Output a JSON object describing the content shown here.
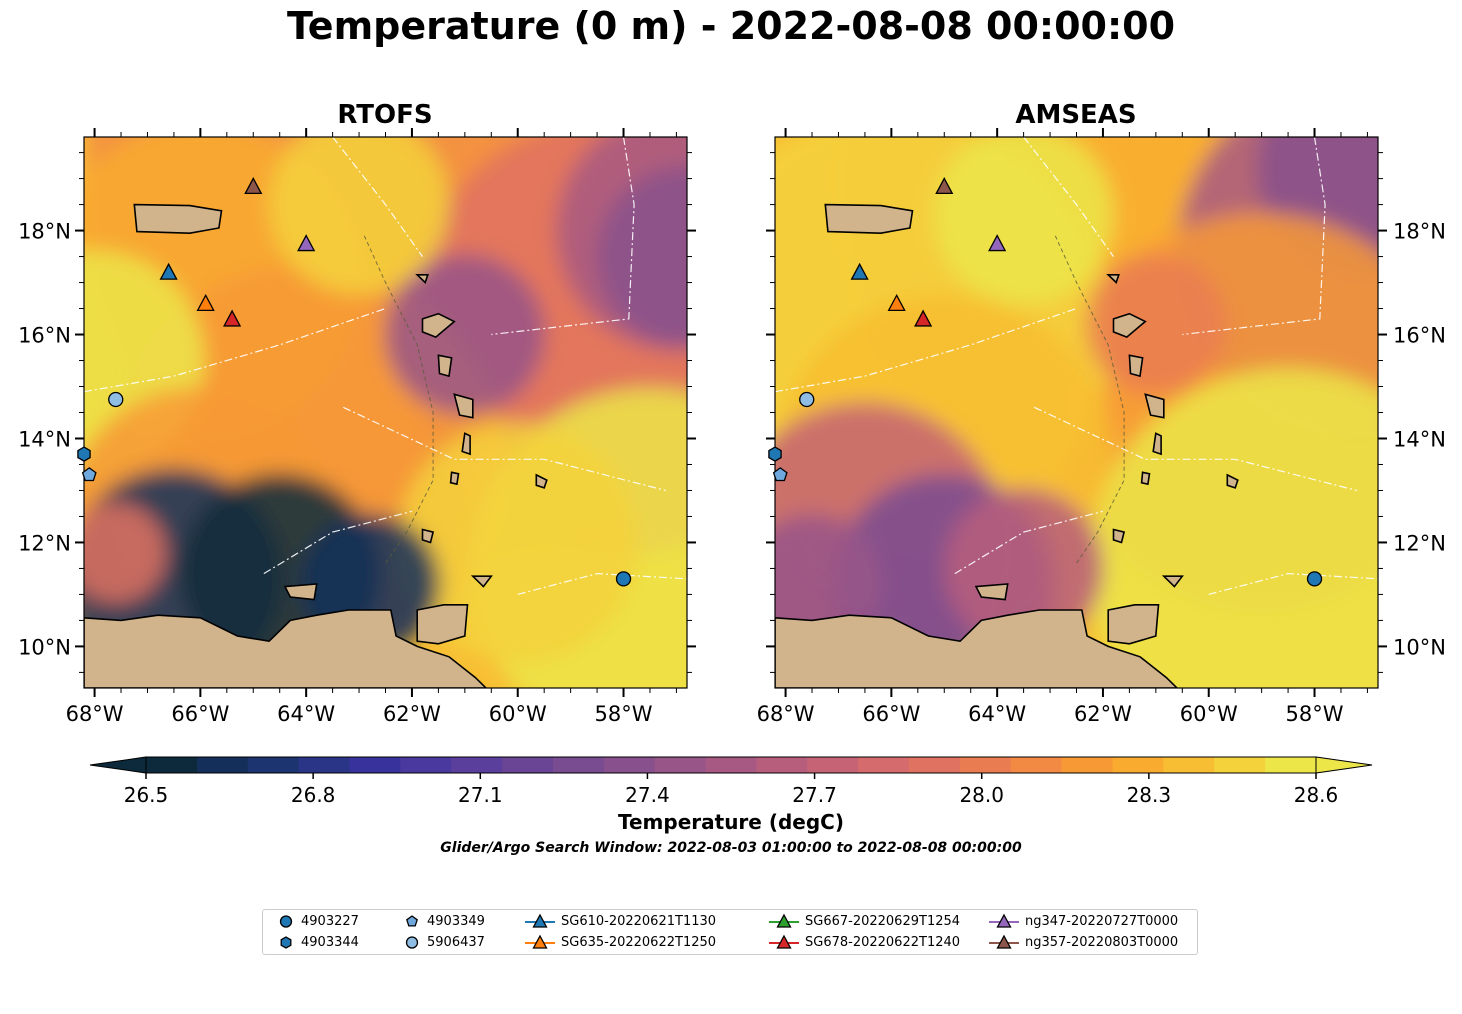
{
  "title": "Temperature (0 m) - 2022-08-08 00:00:00",
  "panels": [
    {
      "title": "RTOFS",
      "model": "rtofs"
    },
    {
      "title": "AMSEAS",
      "model": "amseas"
    }
  ],
  "axes": {
    "lon_ticks": [
      "68°W",
      "66°W",
      "64°W",
      "62°W",
      "60°W",
      "58°W"
    ],
    "lon_values": [
      -68,
      -66,
      -64,
      -62,
      -60,
      -58
    ],
    "lat_ticks": [
      "18°N",
      "16°N",
      "14°N",
      "12°N",
      "10°N"
    ],
    "lat_values": [
      18,
      16,
      14,
      12,
      10
    ],
    "lon_range": [
      -68.2,
      -56.8
    ],
    "lat_range": [
      9.2,
      19.8
    ]
  },
  "colorbar": {
    "label": "Temperature (degC)",
    "tick_labels": [
      "26.5",
      "26.8",
      "27.1",
      "27.4",
      "27.7",
      "28.0",
      "28.3",
      "28.6"
    ],
    "range": [
      26.5,
      28.6
    ],
    "extend": "both",
    "colormap": "thermal",
    "colors": [
      "#0c2a3b",
      "#14305a",
      "#1c3570",
      "#2a3587",
      "#38339c",
      "#4a3aa0",
      "#5b3f9c",
      "#6a4596",
      "#794b90",
      "#88508c",
      "#985588",
      "#a85983",
      "#b75e7d",
      "#c66476",
      "#d56b6c",
      "#e07261",
      "#ea7c52",
      "#f28a43",
      "#f79a36",
      "#f9ab30",
      "#f8be33",
      "#f4d23c",
      "#ece649"
    ]
  },
  "search_window": "Glider/Argo Search Window: 2022-08-03 01:00:00 to 2022-08-08 00:00:00",
  "legend": [
    {
      "label": "4903227",
      "marker": "circle",
      "color": "#1f77b4"
    },
    {
      "label": "4903344",
      "marker": "hexagon",
      "color": "#1f77b4"
    },
    {
      "label": "4903349",
      "marker": "pentagon",
      "color": "#6fa8dc"
    },
    {
      "label": "5906437",
      "marker": "circle",
      "color": "#8fbde3"
    },
    {
      "label": "SG610-20220621T1130",
      "marker": "triangle",
      "color": "#1f77b4"
    },
    {
      "label": "SG635-20220622T1250",
      "marker": "triangle",
      "color": "#ff7f0e"
    },
    {
      "label": "SG667-20220629T1254",
      "marker": "triangle",
      "color": "#2ca02c"
    },
    {
      "label": "SG678-20220622T1240",
      "marker": "triangle",
      "color": "#d62728"
    },
    {
      "label": "ng347-20220727T0000",
      "marker": "triangle",
      "color": "#9467bd"
    },
    {
      "label": "ng357-20220803T0000",
      "marker": "triangle",
      "color": "#8c564b"
    }
  ],
  "observations": [
    {
      "id": "4903227",
      "lon": -58.0,
      "lat": 11.3
    },
    {
      "id": "4903344",
      "lon": -68.2,
      "lat": 13.7
    },
    {
      "id": "4903349",
      "lon": -68.1,
      "lat": 13.3
    },
    {
      "id": "5906437",
      "lon": -67.6,
      "lat": 14.75
    },
    {
      "id": "SG610-20220621T1130",
      "lon": -66.6,
      "lat": 17.2
    },
    {
      "id": "SG635-20220622T1250",
      "lon": -65.9,
      "lat": 16.6
    },
    {
      "id": "SG678-20220622T1240",
      "lon": -65.4,
      "lat": 16.3
    },
    {
      "id": "ng347-20220727T0000",
      "lon": -64.0,
      "lat": 17.75
    },
    {
      "id": "ng357-20220803T0000",
      "lon": -65.0,
      "lat": 18.85
    }
  ]
}
